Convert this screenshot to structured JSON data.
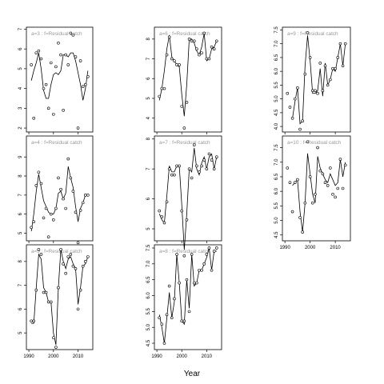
{
  "chart_data": {
    "type": "scatter",
    "xlabel": "Year",
    "x": [
      1991,
      1992,
      1993,
      1994,
      1995,
      1996,
      1997,
      1998,
      1999,
      2000,
      2001,
      2002,
      2003,
      2004,
      2005,
      2006,
      2007,
      2008,
      2009,
      2010,
      2011,
      2012,
      2013,
      2014
    ],
    "xlim": [
      1989,
      2016
    ],
    "xticks": [
      1990,
      2000,
      2010
    ],
    "panels": [
      {
        "title": "a=3  :  f=Residual catch",
        "ylim": [
          1.8,
          7.1
        ],
        "yticks": [
          2,
          3,
          4,
          5,
          6,
          7
        ],
        "points": [
          5.2,
          2.5,
          5.8,
          5.9,
          5.5,
          4.0,
          4.2,
          3.0,
          5.3,
          2.7,
          5.1,
          6.3,
          5.7,
          2.9,
          5.7,
          5.2,
          6.8,
          6.7,
          5.6,
          2.0,
          5.4,
          4.1,
          4.2,
          4.6
        ],
        "fit": [
          4.4,
          4.9,
          5.3,
          5.8,
          5.0,
          3.9,
          3.5,
          3.5,
          4.2,
          4.7,
          4.8,
          4.7,
          4.9,
          5.7,
          5.7,
          5.6,
          5.8,
          5.8,
          5.4,
          4.8,
          4.2,
          3.4,
          4.0,
          4.9
        ]
      },
      {
        "title": "a=6  :  f=Residual catch",
        "ylim": [
          3.3,
          8.6
        ],
        "yticks": [
          4,
          5,
          6,
          7,
          8
        ],
        "points": [
          5.1,
          5.5,
          5.5,
          7.2,
          8.1,
          7.0,
          6.9,
          6.7,
          6.7,
          4.6,
          3.5,
          4.8,
          8.0,
          7.9,
          7.9,
          7.5,
          7.2,
          7.3,
          8.3,
          7.0,
          7.0,
          7.6,
          7.5,
          7.9
        ],
        "fit": [
          4.9,
          5.5,
          6.4,
          7.5,
          8.2,
          7.1,
          6.9,
          6.7,
          6.6,
          5.2,
          4.1,
          5.7,
          8.0,
          8.0,
          7.8,
          7.4,
          7.2,
          7.6,
          8.3,
          6.9,
          7.0,
          7.5,
          7.6,
          7.9
        ]
      },
      {
        "title": "a=9  :  f=Residual catch",
        "ylim": [
          3.8,
          7.6
        ],
        "yticks": [
          4.0,
          4.5,
          5.0,
          5.5,
          6.0,
          6.5,
          7.0,
          7.5
        ],
        "points": [
          5.2,
          4.7,
          4.3,
          5.0,
          5.4,
          3.9,
          4.2,
          5.9,
          7.4,
          6.5,
          5.3,
          5.3,
          5.2,
          6.3,
          5.3,
          6.2,
          5.5,
          5.7,
          6.1,
          6.1,
          6.5,
          7.0,
          6.2,
          7.0
        ],
        "fit": [
          null,
          null,
          4.3,
          4.9,
          5.4,
          4.1,
          4.2,
          6.2,
          7.3,
          6.4,
          5.2,
          5.2,
          5.3,
          6.1,
          5.1,
          6.3,
          5.5,
          5.7,
          6.1,
          6.0,
          6.5,
          7.0,
          6.2,
          7.0
        ]
      },
      {
        "title": "a=4  :  f=Residual catch",
        "ylim": [
          4.6,
          10.1
        ],
        "yticks": [
          5,
          6,
          7,
          8,
          9
        ],
        "points": [
          5.3,
          5.6,
          7.5,
          8.2,
          7.6,
          5.8,
          6.3,
          4.8,
          6.0,
          5.7,
          6.3,
          7.9,
          7.3,
          6.8,
          6.3,
          8.9,
          7.9,
          7.2,
          6.1,
          4.5,
          6.2,
          6.6,
          7.0,
          7.0
        ],
        "fit": [
          5.1,
          6.0,
          7.2,
          8.1,
          7.4,
          6.7,
          6.4,
          6.1,
          6.0,
          6.0,
          6.3,
          7.1,
          7.2,
          6.8,
          7.1,
          8.5,
          7.9,
          7.4,
          6.4,
          5.6,
          6.3,
          6.6,
          7.0,
          7.0
        ]
      },
      {
        "title": "a=7  :  f=Residual catch",
        "ylim": [
          4.6,
          8.1
        ],
        "yticks": [
          5,
          6,
          7,
          8
        ],
        "points": [
          5.6,
          5.4,
          5.2,
          5.9,
          7.0,
          6.8,
          6.8,
          7.1,
          7.1,
          5.6,
          4.1,
          5.3,
          7.0,
          6.7,
          7.8,
          7.1,
          6.9,
          7.1,
          7.3,
          7.0,
          7.5,
          7.3,
          7.0,
          7.4
        ],
        "fit": [
          5.5,
          5.3,
          5.2,
          6.1,
          7.1,
          6.9,
          6.9,
          7.1,
          7.1,
          5.8,
          4.3,
          5.5,
          7.0,
          6.9,
          7.7,
          7.0,
          6.8,
          7.2,
          7.4,
          7.0,
          7.4,
          7.5,
          7.0,
          7.4
        ]
      },
      {
        "title": "a=10  :  f=Residual catch",
        "ylim": [
          4.3,
          7.9
        ],
        "yticks": [
          4.5,
          5.0,
          5.5,
          6.0,
          6.5,
          7.0,
          7.5
        ],
        "points": [
          6.8,
          6.3,
          5.3,
          6.3,
          6.4,
          5.1,
          4.6,
          5.6,
          7.7,
          6.5,
          5.6,
          5.9,
          7.5,
          6.7,
          6.6,
          6.3,
          6.2,
          6.8,
          5.9,
          5.8,
          6.1,
          7.1,
          6.1,
          6.9
        ],
        "fit": [
          null,
          null,
          6.2,
          6.3,
          6.4,
          5.3,
          4.6,
          5.6,
          7.3,
          6.6,
          5.9,
          5.6,
          7.2,
          6.8,
          6.6,
          6.4,
          6.3,
          6.6,
          6.4,
          6.2,
          6.3,
          7.1,
          6.5,
          7.0
        ]
      },
      {
        "title": "a=5  :  f=Residual catch",
        "ylim": [
          4.3,
          8.7
        ],
        "yticks": [
          5,
          6,
          7,
          8
        ],
        "points": [
          5.5,
          5.5,
          6.8,
          8.5,
          8.3,
          6.7,
          6.7,
          6.3,
          6.3,
          4.8,
          4.4,
          6.9,
          8.5,
          7.9,
          7.5,
          8.2,
          8.3,
          7.8,
          7.7,
          6.0,
          6.8,
          7.8,
          8.0,
          8.2
        ],
        "fit": [
          5.4,
          5.4,
          6.9,
          8.3,
          8.1,
          6.9,
          6.7,
          6.3,
          6.3,
          5.0,
          4.5,
          6.9,
          8.5,
          8.0,
          7.7,
          8.1,
          8.2,
          7.9,
          7.7,
          6.2,
          6.9,
          7.8,
          7.9,
          8.2
        ]
      },
      {
        "title": "a=8  :  f=Residual catch",
        "ylim": [
          4.3,
          7.6
        ],
        "yticks": [
          4.5,
          5.0,
          5.5,
          6.0,
          6.5,
          7.0,
          7.5
        ],
        "points": [
          5.3,
          5.1,
          4.5,
          5.4,
          6.3,
          5.3,
          5.9,
          7.3,
          6.4,
          5.2,
          5.2,
          6.5,
          5.5,
          7.3,
          6.4,
          6.4,
          6.8,
          6.8,
          7.0,
          7.3,
          7.5,
          6.8,
          7.4,
          7.5
        ],
        "fit": [
          5.4,
          5.0,
          4.5,
          5.3,
          6.1,
          5.3,
          5.8,
          7.3,
          6.4,
          5.2,
          5.1,
          6.5,
          5.6,
          7.3,
          6.3,
          6.4,
          6.8,
          6.8,
          7.0,
          7.2,
          7.5,
          6.8,
          7.4,
          7.4
        ]
      }
    ],
    "layout": {
      "panel_order": [
        "a=3",
        "a=6",
        "a=9",
        "a=4",
        "a=7",
        "a=10",
        "a=5",
        "a=8"
      ],
      "xlabel_location": "bottom-center"
    }
  }
}
